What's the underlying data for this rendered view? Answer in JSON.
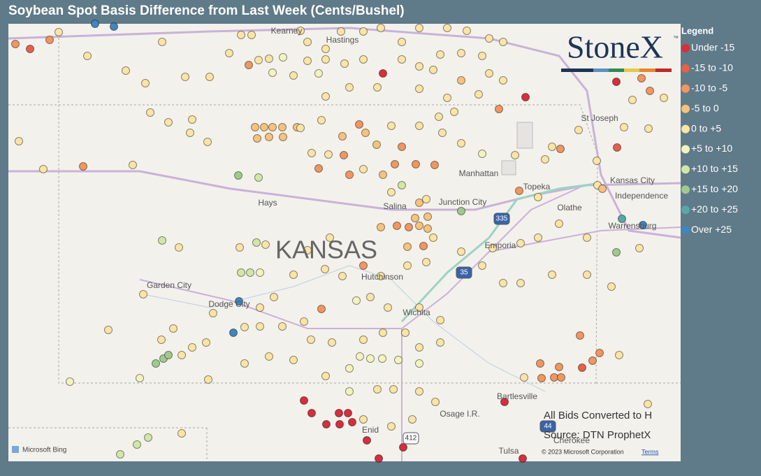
{
  "header": {
    "title": "Soybean Spot Basis Difference from Last Week (Cents/Bushel)"
  },
  "legend": {
    "title": "Legend",
    "items": [
      {
        "label": "Under -15",
        "color": "#d62f3d"
      },
      {
        "label": "-15 to -10",
        "color": "#e6604a"
      },
      {
        "label": "-10 to -5",
        "color": "#f0965f"
      },
      {
        "label": "-5 to 0",
        "color": "#f6c27c"
      },
      {
        "label": "0 to +5",
        "color": "#fbe4a4"
      },
      {
        "label": "+5 to +10",
        "color": "#f3f4bd"
      },
      {
        "label": "+10 to +15",
        "color": "#d2e7a7"
      },
      {
        "label": "+15 to +20",
        "color": "#9ecb8c"
      },
      {
        "label": "+20 to +25",
        "color": "#5aa7a8"
      },
      {
        "label": "Over +25",
        "color": "#3e86c0"
      }
    ]
  },
  "logo": {
    "text": "StoneX",
    "mark": "™"
  },
  "map": {
    "state": "KANSAS",
    "places": [
      "Kearney",
      "Hastings",
      "St Joseph",
      "Manhattan",
      "Topeka",
      "Kansas City",
      "Independence",
      "Hays",
      "Salina",
      "Junction City",
      "Olathe",
      "Emporia",
      "Warrensburg",
      "Garden City",
      "Hutchinson",
      "Dodge City",
      "Wichita",
      "Bartlesville",
      "Osage I.R.",
      "Enid",
      "Tulsa",
      "Cherokee"
    ],
    "highways": [
      "335",
      "35",
      "412",
      "44"
    ]
  },
  "notes": [
    "All Bids Converted to H",
    "Source: DTN ProphetX"
  ],
  "attribution": {
    "bing": "Microsoft Bing",
    "copyright": "© 2023 Microsoft Corporation",
    "terms": "Terms"
  }
}
